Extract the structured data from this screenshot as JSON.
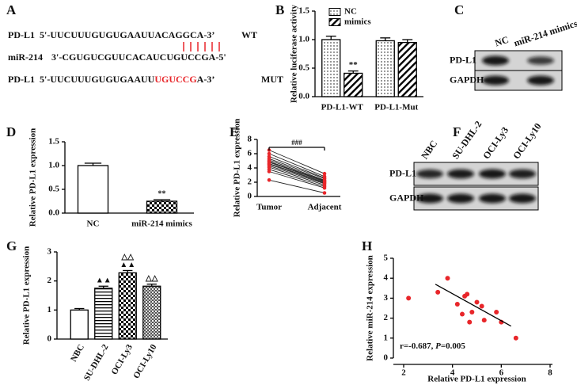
{
  "sequence_panel": {
    "label": "A",
    "rows": [
      {
        "name": "PD-L1",
        "parts": [
          {
            "text": "5'-UUCUUUGUGUGAAUUACAGGCA-3’"
          }
        ],
        "tag": "WT"
      },
      {
        "name": "miR-214",
        "parts": [
          {
            "text": "3'-CGUGUCGUUCACAUCUGUCCGA-5'"
          }
        ]
      },
      {
        "name": "PD-L1",
        "parts": [
          {
            "text": "5'-UUCUUUGUGUGAAUU"
          },
          {
            "text": "UGUCCG",
            "color": "#e8262a"
          },
          {
            "text": "A-3’"
          }
        ],
        "tag": "MUT"
      }
    ],
    "pairing_color": "#e8262a"
  },
  "blots": [
    {
      "label": "C",
      "columns": [
        "NC",
        "miR-214 mimics"
      ],
      "rows": [
        "PD-L1",
        "GAPDH"
      ]
    },
    {
      "label": "F",
      "columns": [
        "NBC",
        "SU-DHL-2",
        "OCI-Ly3",
        "OCI-Ly10"
      ],
      "rows": [
        "PD-L1",
        "GAPDH"
      ]
    }
  ],
  "chart_data": [
    {
      "type": "bar",
      "label": "B",
      "y_label": "Relative luciferase activity",
      "categories": [
        "PD-L1-WT",
        "PD-L1-Mut"
      ],
      "series": [
        {
          "name": "NC",
          "pattern": "dots",
          "values": [
            1.0,
            0.98
          ],
          "errors": [
            0.06,
            0.05
          ],
          "significance": [
            null,
            null
          ]
        },
        {
          "name": "mimics",
          "pattern": "hatch",
          "values": [
            0.41,
            0.95
          ],
          "errors": [
            0.04,
            0.05
          ],
          "significance": [
            "**",
            null
          ]
        }
      ],
      "ylim": [
        0,
        1.5
      ],
      "yticks": [
        {
          "value": 0,
          "label": "0.0"
        },
        {
          "value": 0.5,
          "label": "0.5"
        },
        {
          "value": 1,
          "label": "1.0"
        },
        {
          "value": 1.5,
          "label": "1.5"
        }
      ]
    },
    {
      "type": "bar",
      "label": "D",
      "y_label": "Relative PD-L1 expression",
      "categories": [
        "NC",
        "miR-214 mimics"
      ],
      "patterns": [
        "none",
        "checker"
      ],
      "values": [
        1.0,
        0.25
      ],
      "errors": [
        0.05,
        0.03
      ],
      "significance": [
        null,
        [
          "**"
        ]
      ],
      "ylim": [
        0,
        1.5
      ],
      "yticks": [
        {
          "value": 0,
          "label": "0.0"
        },
        {
          "value": 0.5,
          "label": "0.5"
        },
        {
          "value": 1,
          "label": "1.0"
        },
        {
          "value": 1.5,
          "label": "1.5"
        }
      ]
    },
    {
      "type": "paired",
      "label": "E",
      "y_label": "Relative PD-L1 expression",
      "categories": [
        "Tumor",
        "Adjacent"
      ],
      "point_color": "#e8262a",
      "annotation": "###",
      "series": [
        {
          "values": [
            6.5,
            3.2
          ]
        },
        {
          "values": [
            6.0,
            2.8
          ]
        },
        {
          "values": [
            5.6,
            2.6
          ]
        },
        {
          "values": [
            5.3,
            2.5
          ]
        },
        {
          "values": [
            5.1,
            2.3
          ]
        },
        {
          "values": [
            4.9,
            2.2
          ]
        },
        {
          "values": [
            4.8,
            2.1
          ]
        },
        {
          "values": [
            4.6,
            2.0
          ]
        },
        {
          "values": [
            4.5,
            1.9
          ]
        },
        {
          "values": [
            4.3,
            1.8
          ]
        },
        {
          "values": [
            4.1,
            1.6
          ]
        },
        {
          "values": [
            3.8,
            1.4
          ]
        },
        {
          "values": [
            3.5,
            1.2
          ]
        },
        {
          "values": [
            2.3,
            0.5
          ]
        }
      ],
      "ylim": [
        0,
        8
      ],
      "yticks": [
        0,
        2,
        4,
        6,
        8
      ]
    },
    {
      "type": "bar",
      "label": "G",
      "y_label": "Relative PD-L1 expression",
      "categories": [
        "NBC",
        "SU-DHL-2",
        "OCI-Ly3",
        "OCI-Ly10"
      ],
      "patterns": [
        "none",
        "hlines",
        "checker",
        "bricks"
      ],
      "values": [
        1.0,
        1.75,
        2.28,
        1.82
      ],
      "errors": [
        0.05,
        0.07,
        0.08,
        0.07
      ],
      "significance": [
        null,
        [
          "▲▲"
        ],
        [
          "△△",
          "▲▲"
        ],
        [
          "△△"
        ]
      ],
      "ylim": [
        0,
        3
      ],
      "yticks": [
        0,
        1,
        2,
        3
      ],
      "rotate_labels": true
    },
    {
      "type": "scatter",
      "label": "H",
      "x_label": "Relative PD-L1 expression",
      "y_label": "Relative miR-214 expression",
      "color": "#e8262a",
      "x": [
        2.2,
        3.4,
        3.8,
        4.2,
        4.4,
        4.5,
        4.6,
        4.7,
        4.8,
        5.0,
        5.2,
        5.3,
        5.8,
        6.0,
        6.6
      ],
      "values": [
        3.0,
        3.3,
        4.0,
        2.7,
        2.2,
        3.1,
        3.2,
        1.8,
        2.3,
        2.8,
        2.6,
        1.9,
        2.3,
        1.8,
        1.0
      ],
      "fit_line": {
        "x": [
          3.3,
          6.4
        ],
        "y": [
          3.7,
          1.6
        ]
      },
      "annotation": [
        "r=-0.687, ",
        "P",
        "=0.005"
      ],
      "xlim": [
        2,
        8
      ],
      "xticks": [
        2,
        4,
        6,
        8
      ],
      "ylim": [
        0,
        5
      ],
      "yticks": [
        0,
        1,
        2,
        3,
        4,
        5
      ]
    }
  ]
}
